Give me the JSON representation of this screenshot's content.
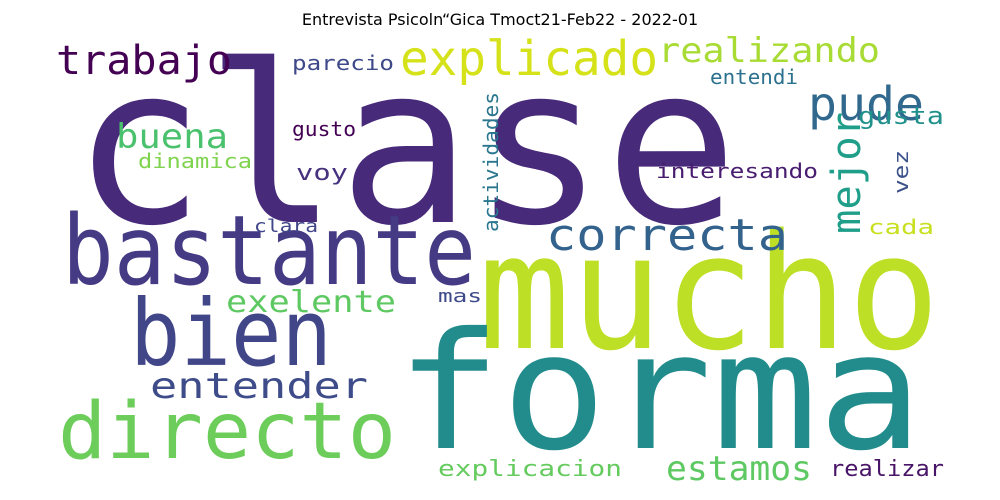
{
  "title": "Entrevista Psicoln“Gica Tmoct21-Feb22 - 2022-01",
  "words": [
    {
      "text": "clase",
      "color": "#472a7a"
    },
    {
      "text": "mucho",
      "color": "#bddf26"
    },
    {
      "text": "forma",
      "color": "#228c8d"
    },
    {
      "text": "bastante",
      "color": "#443b84"
    },
    {
      "text": "bien",
      "color": "#404688"
    },
    {
      "text": "directo",
      "color": "#6ccd5a"
    },
    {
      "text": "explicado",
      "color": "#d5e21a"
    },
    {
      "text": "trabajo",
      "color": "#440154"
    },
    {
      "text": "realizando",
      "color": "#a8db34"
    },
    {
      "text": "pude",
      "color": "#31688e"
    },
    {
      "text": "correcta",
      "color": "#33638d"
    },
    {
      "text": "mejor",
      "color": "#1f9e89"
    },
    {
      "text": "buena",
      "color": "#4ac16d"
    },
    {
      "text": "entender",
      "color": "#3e4c8a"
    },
    {
      "text": "exelente",
      "color": "#5ec962"
    },
    {
      "text": "estamos",
      "color": "#5ec962"
    },
    {
      "text": "explicacion",
      "color": "#65cb5e"
    },
    {
      "text": "realizar",
      "color": "#481467"
    },
    {
      "text": "parecio",
      "color": "#3e4989"
    },
    {
      "text": "entendi",
      "color": "#2c718e"
    },
    {
      "text": "actividades",
      "color": "#2a768e"
    },
    {
      "text": "gusta",
      "color": "#21918c"
    },
    {
      "text": "gusto",
      "color": "#440154"
    },
    {
      "text": "dinamica",
      "color": "#7fd34e"
    },
    {
      "text": "voy",
      "color": "#46327e"
    },
    {
      "text": "interesando",
      "color": "#481c6e"
    },
    {
      "text": "vez",
      "color": "#3b518b"
    },
    {
      "text": "clara",
      "color": "#404688"
    },
    {
      "text": "cada",
      "color": "#c8e020"
    },
    {
      "text": "mas",
      "color": "#3f4a8a"
    }
  ]
}
